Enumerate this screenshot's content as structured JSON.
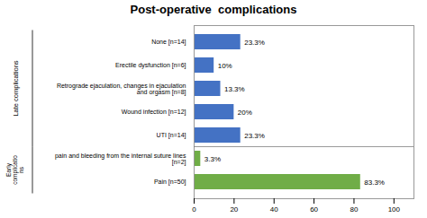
{
  "chart_data": {
    "type": "bar",
    "orientation": "horizontal",
    "title": "Post-operative  complications",
    "categories": [
      "None [n=14]",
      "Erectile dysfunction [n=6]",
      "Retrograde ejaculation, changes in ejaculation\nand orgasm [n=8]",
      "Wound infection [n=12]",
      "UTI [n=14]",
      "pain and bleeding from the internal suture lines\n[n=2]",
      "Pain [n=50]"
    ],
    "values": [
      23.3,
      10.0,
      13.3,
      20.0,
      23.3,
      3.3,
      83.3
    ],
    "value_labels": [
      "23.3%",
      "10%",
      "13.3%",
      "20%",
      "23.3%",
      "3.3%",
      "83.3%"
    ],
    "colors": [
      "#4472C4",
      "#4472C4",
      "#4472C4",
      "#4472C4",
      "#4472C4",
      "#70AD47",
      "#70AD47"
    ],
    "xlim": [
      0,
      110
    ],
    "xticks": [
      0,
      20,
      40,
      60,
      80,
      100
    ],
    "grid": false,
    "data_labels": true,
    "annotations": [
      {
        "text": "Late complications",
        "categories": [
          "None [n=14]",
          "Erectile dysfunction [n=6]",
          "Retrograde ejaculation, changes in ejaculation\nand orgasm [n=8]",
          "Wound infection [n=12]",
          "UTI [n=14]"
        ]
      },
      {
        "text": "Early\ncomplicatio\nns",
        "categories": [
          "pain and bleeding from the internal suture lines\n[n=2]",
          "Pain [n=50]"
        ]
      }
    ]
  }
}
